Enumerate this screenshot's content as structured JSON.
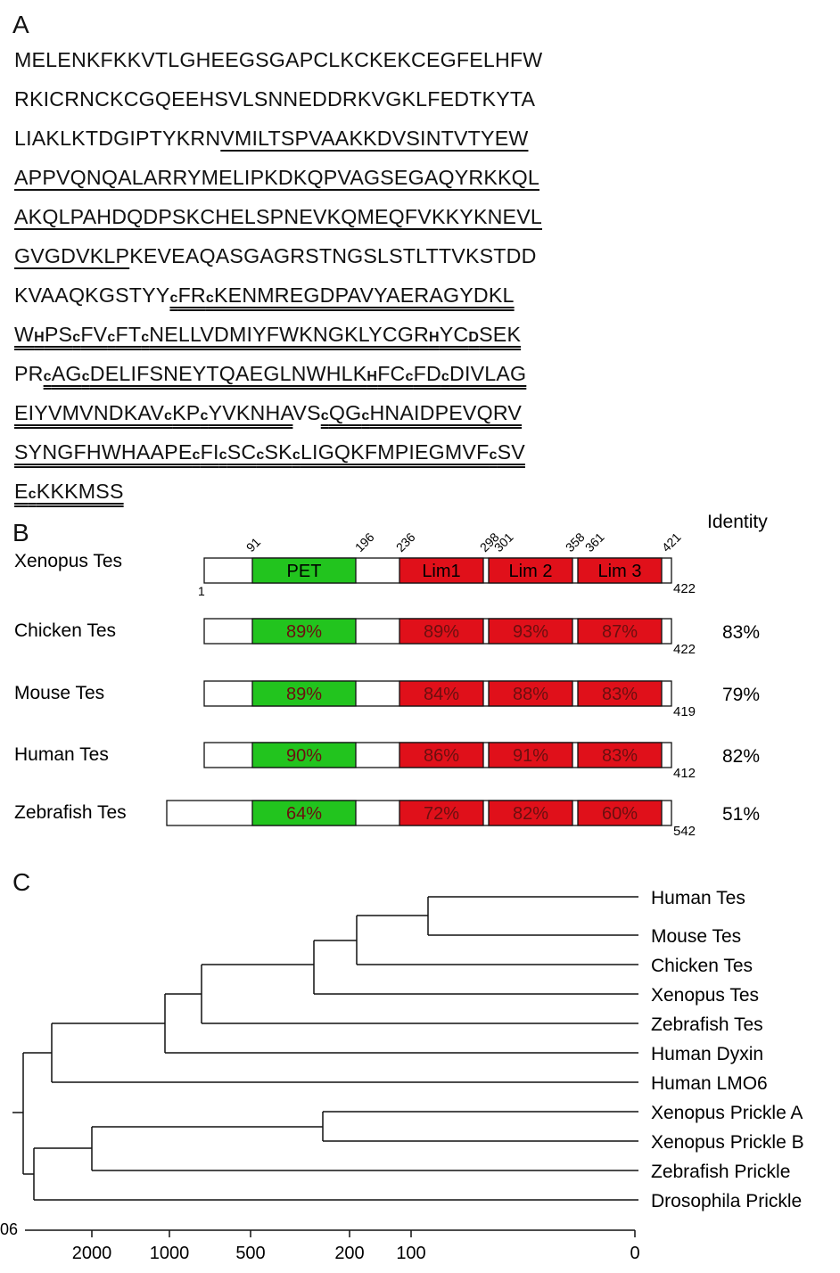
{
  "panels": {
    "a": "A",
    "b": "B",
    "c": "C"
  },
  "sequence_lines": [
    [
      {
        "t": "MELENKFKKVTLGHEEGSGAPCLKCKEKCEGFELHFW",
        "u": 0
      }
    ],
    [
      {
        "t": "RKICRNCKCGQEEHSVLSNNEDDRKVGKLFEDTKYTA",
        "u": 0
      }
    ],
    [
      {
        "t": "LIAKLKTDGIPTYKRN",
        "u": 0
      },
      {
        "t": "VMILTSPVAAKKDVSINTVTYEW",
        "u": 1
      }
    ],
    [
      {
        "t": "APPVQNQALARRYMELIPKDKQPVAGSEGAQYRKKQL",
        "u": 1
      }
    ],
    [
      {
        "t": "AKQLPAHDQDPSKCHELSPNEVKQMEQFVKKYKNEVL",
        "u": 1
      }
    ],
    [
      {
        "t": "GVGDVKLP",
        "u": 1
      },
      {
        "t": "KEVEAQASGAGRSTNGSLSTLTTVKSTDD",
        "u": 0
      }
    ],
    [
      {
        "t": "KVAAQKGSTYY",
        "u": 0
      },
      {
        "t": "c",
        "u": 2,
        "s": 1
      },
      {
        "t": "FR",
        "u": 2
      },
      {
        "t": "c",
        "u": 2,
        "s": 1
      },
      {
        "t": "KENMREGDPAVYAERAGYDKL",
        "u": 2
      }
    ],
    [
      {
        "t": "W",
        "u": 2
      },
      {
        "t": "H",
        "u": 2,
        "s": 1
      },
      {
        "t": "PS",
        "u": 2
      },
      {
        "t": "c",
        "u": 2,
        "s": 1
      },
      {
        "t": "FV",
        "u": 2
      },
      {
        "t": "c",
        "u": 2,
        "s": 1
      },
      {
        "t": "FT",
        "u": 2
      },
      {
        "t": "c",
        "u": 2,
        "s": 1
      },
      {
        "t": "NELLVDMIYFWKNGKLYCGR",
        "u": 2
      },
      {
        "t": "H",
        "u": 2,
        "s": 1
      },
      {
        "t": "YC",
        "u": 2
      },
      {
        "t": "D",
        "u": 2,
        "s": 1
      },
      {
        "t": "SEK",
        "u": 2
      }
    ],
    [
      {
        "t": "PR",
        "u": 0
      },
      {
        "t": "c",
        "u": 2,
        "s": 1
      },
      {
        "t": "AG",
        "u": 2
      },
      {
        "t": "c",
        "u": 2,
        "s": 1
      },
      {
        "t": "DELIFSNEYTQAEGLNWHLK",
        "u": 2
      },
      {
        "t": "H",
        "u": 2,
        "s": 1
      },
      {
        "t": "FC",
        "u": 2
      },
      {
        "t": "c",
        "u": 2,
        "s": 1
      },
      {
        "t": "FD",
        "u": 2
      },
      {
        "t": "c",
        "u": 2,
        "s": 1
      },
      {
        "t": "DIVLAG",
        "u": 2
      }
    ],
    [
      {
        "t": "EIYVMVNDKAV",
        "u": 2
      },
      {
        "t": "c",
        "u": 2,
        "s": 1
      },
      {
        "t": "KP",
        "u": 2
      },
      {
        "t": "c",
        "u": 2,
        "s": 1
      },
      {
        "t": "YVKNHA",
        "u": 2
      },
      {
        "t": "VS",
        "u": 0
      },
      {
        "t": "c",
        "u": 2,
        "s": 1
      },
      {
        "t": "QG",
        "u": 2
      },
      {
        "t": "c",
        "u": 2,
        "s": 1
      },
      {
        "t": "HNAIDPEVQRV",
        "u": 2
      }
    ],
    [
      {
        "t": "SYNGFHWHAAPE",
        "u": 2
      },
      {
        "t": "c",
        "u": 2,
        "s": 1
      },
      {
        "t": "FI",
        "u": 2
      },
      {
        "t": "c",
        "u": 2,
        "s": 1
      },
      {
        "t": "SC",
        "u": 2
      },
      {
        "t": "c",
        "u": 2,
        "s": 1
      },
      {
        "t": "SK",
        "u": 2
      },
      {
        "t": "c",
        "u": 2,
        "s": 1
      },
      {
        "t": "LIGQKFMPIEGMVF",
        "u": 2
      },
      {
        "t": "c",
        "u": 2,
        "s": 1
      },
      {
        "t": "SV",
        "u": 2
      }
    ],
    [
      {
        "t": "E",
        "u": 2
      },
      {
        "t": "c",
        "u": 2,
        "s": 1
      },
      {
        "t": "KKKMSS",
        "u": 2
      }
    ]
  ],
  "domain_figure": {
    "identity_header": "Identity",
    "position_labels": [
      "91",
      "196",
      "236",
      "298",
      "301",
      "358",
      "361",
      "421"
    ],
    "domain_names": [
      "PET",
      "Lim1",
      "Lim 2",
      "Lim 3"
    ],
    "start_label": "1",
    "rows": [
      {
        "species": "Xenopus Tes",
        "pet": "PET",
        "lim1": "Lim1",
        "lim2": "Lim 2",
        "lim3": "Lim 3",
        "length": "422",
        "identity": ""
      },
      {
        "species": "Chicken Tes",
        "pet": "89%",
        "lim1": "89%",
        "lim2": "93%",
        "lim3": "87%",
        "length": "422",
        "identity": "83%"
      },
      {
        "species": "Mouse Tes",
        "pet": "89%",
        "lim1": "84%",
        "lim2": "88%",
        "lim3": "83%",
        "length": "419",
        "identity": "79%"
      },
      {
        "species": "Human Tes",
        "pet": "90%",
        "lim1": "86%",
        "lim2": "91%",
        "lim3": "83%",
        "length": "412",
        "identity": "82%"
      },
      {
        "species": "Zebrafish Tes",
        "pet": "64%",
        "lim1": "72%",
        "lim2": "82%",
        "lim3": "60%",
        "length": "542",
        "identity": "51%"
      }
    ],
    "colors": {
      "pet": "#22c41e",
      "lim": "#e0101a",
      "text_on_domain": "#6b0f0f"
    }
  },
  "tree": {
    "leaves": [
      "Human Tes",
      "Mouse Tes",
      "Chicken Tes",
      "Xenopus Tes",
      "Zebrafish Tes",
      "Human Dyxin",
      "Human LMO6",
      "Xenopus Prickle A",
      "Xenopus Prickle B",
      "Zebrafish Prickle",
      "Drosophila Prickle"
    ],
    "axis_ticks": [
      "2000",
      "1000",
      "500",
      "200",
      "100",
      "0"
    ],
    "axis_left_label": "06"
  }
}
